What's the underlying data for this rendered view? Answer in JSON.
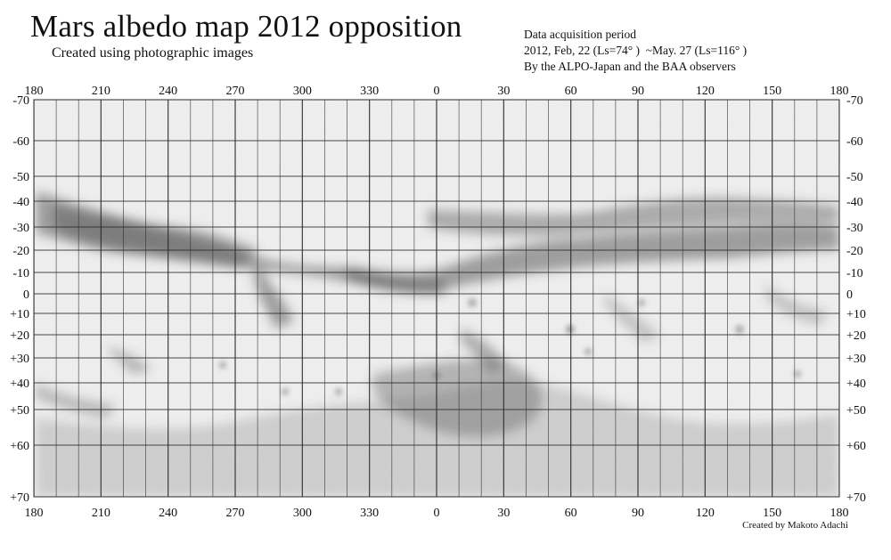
{
  "title": "Mars albedo map 2012 opposition",
  "subtitle": "Created using photographic images",
  "info": {
    "line1": "Data acquisition period",
    "line2": "2012, Feb, 22 (Ls=74° )  ~May. 27 (Ls=116° )",
    "line3": "By the ALPO-Japan and the BAA observers"
  },
  "credit": "Created by Makoto Adachi",
  "map": {
    "longitude_labels": [
      "180",
      "210",
      "240",
      "270",
      "300",
      "330",
      "0",
      "30",
      "60",
      "90",
      "120",
      "150",
      "180"
    ],
    "latitude_labels": [
      "-70",
      "-60",
      "-50",
      "-40",
      "-30",
      "-20",
      "-10",
      "0",
      "+10",
      "+20",
      "+30",
      "+40",
      "+50",
      "+60",
      "+70"
    ],
    "latitude_values": [
      -70,
      -60,
      -50,
      -40,
      -30,
      -20,
      -10,
      0,
      10,
      20,
      30,
      40,
      50,
      60,
      70
    ],
    "longitude_grid_step_deg": 10,
    "palette": {
      "background": "#f3f3f3",
      "grid": "#2a2a2a",
      "dark": "#4a4a4a"
    }
  }
}
